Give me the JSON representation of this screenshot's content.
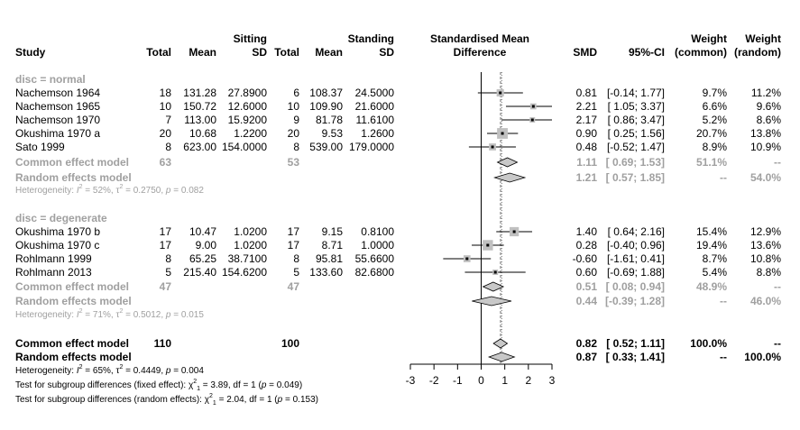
{
  "header": {
    "study": "Study",
    "exp_group": "Sitting",
    "ctl_group": "Standing",
    "total": "Total",
    "mean": "Mean",
    "sd": "SD",
    "smd_title_1": "Standardised Mean",
    "smd_title_2": "Difference",
    "smd": "SMD",
    "ci": "95%-CI",
    "weight": "Weight",
    "w_common": "(common)",
    "w_random": "(random)"
  },
  "chart_data": {
    "type": "forest",
    "xlim": [
      -3,
      3
    ],
    "xticks": [
      -3,
      -2,
      -1,
      0,
      1,
      2,
      3
    ],
    "fixed_line": 0.82,
    "random_line": 0.87,
    "subgroups": [
      {
        "label": "disc = normal",
        "studies": [
          {
            "name": "Nachemson 1964",
            "n1": "18",
            "m1": "131.28",
            "sd1": "27.8900",
            "n2": "6",
            "m2": "108.37",
            "sd2": "24.5000",
            "smd": 0.81,
            "lo": -0.14,
            "hi": 1.77,
            "smd_txt": "0.81",
            "ci_txt": "[-0.14; 1.77]",
            "wc": "9.7%",
            "wr": "11.2%",
            "w": 9.7
          },
          {
            "name": "Nachemson 1965",
            "n1": "10",
            "m1": "150.72",
            "sd1": "12.6000",
            "n2": "10",
            "m2": "109.90",
            "sd2": "21.6000",
            "smd": 2.21,
            "lo": 1.05,
            "hi": 3.37,
            "smd_txt": "2.21",
            "ci_txt": "[ 1.05; 3.37]",
            "wc": "6.6%",
            "wr": "9.6%",
            "w": 6.6
          },
          {
            "name": "Nachemson 1970",
            "n1": "7",
            "m1": "113.00",
            "sd1": "15.9200",
            "n2": "9",
            "m2": "81.78",
            "sd2": "11.6100",
            "smd": 2.17,
            "lo": 0.86,
            "hi": 3.47,
            "smd_txt": "2.17",
            "ci_txt": "[ 0.86; 3.47]",
            "wc": "5.2%",
            "wr": "8.6%",
            "w": 5.2
          },
          {
            "name": "Okushima 1970 a",
            "n1": "20",
            "m1": "10.68",
            "sd1": "1.2200",
            "n2": "20",
            "m2": "9.53",
            "sd2": "1.2600",
            "smd": 0.9,
            "lo": 0.25,
            "hi": 1.56,
            "smd_txt": "0.90",
            "ci_txt": "[ 0.25; 1.56]",
            "wc": "20.7%",
            "wr": "13.8%",
            "w": 20.7
          },
          {
            "name": "Sato 1999",
            "n1": "8",
            "m1": "623.00",
            "sd1": "154.0000",
            "n2": "8",
            "m2": "539.00",
            "sd2": "179.0000",
            "smd": 0.48,
            "lo": -0.52,
            "hi": 1.47,
            "smd_txt": "0.48",
            "ci_txt": "[-0.52; 1.47]",
            "wc": "8.9%",
            "wr": "10.9%",
            "w": 8.9
          }
        ],
        "common": {
          "label": "Common effect model",
          "n1": "63",
          "n2": "53",
          "est": 1.11,
          "lo": 0.69,
          "hi": 1.53,
          "smd_txt": "1.11",
          "ci_txt": "[ 0.69; 1.53]",
          "wc": "51.1%",
          "wr": "--"
        },
        "random": {
          "label": "Random effects model",
          "est": 1.21,
          "lo": 0.57,
          "hi": 1.85,
          "smd_txt": "1.21",
          "ci_txt": "[ 0.57; 1.85]",
          "wc": "--",
          "wr": "54.0%"
        },
        "het": {
          "pre": "Heterogeneity: ",
          "i2": "I",
          "mid": " = 52%, ",
          "tau": "τ",
          "post": " = 0.2750, ",
          "p": "p",
          "pval": " = 0.082"
        }
      },
      {
        "label": "disc = degenerate",
        "studies": [
          {
            "name": "Okushima 1970 b",
            "n1": "17",
            "m1": "10.47",
            "sd1": "1.0200",
            "n2": "17",
            "m2": "9.15",
            "sd2": "0.8100",
            "smd": 1.4,
            "lo": 0.64,
            "hi": 2.16,
            "smd_txt": "1.40",
            "ci_txt": "[ 0.64; 2.16]",
            "wc": "15.4%",
            "wr": "12.9%",
            "w": 15.4
          },
          {
            "name": "Okushima 1970 c",
            "n1": "17",
            "m1": "9.00",
            "sd1": "1.0200",
            "n2": "17",
            "m2": "8.71",
            "sd2": "1.0000",
            "smd": 0.28,
            "lo": -0.4,
            "hi": 0.96,
            "smd_txt": "0.28",
            "ci_txt": "[-0.40; 0.96]",
            "wc": "19.4%",
            "wr": "13.6%",
            "w": 19.4
          },
          {
            "name": "Rohlmann 1999",
            "n1": "8",
            "m1": "65.25",
            "sd1": "38.7100",
            "n2": "8",
            "m2": "95.81",
            "sd2": "55.6600",
            "smd": -0.6,
            "lo": -1.61,
            "hi": 0.41,
            "smd_txt": "-0.60",
            "ci_txt": "[-1.61; 0.41]",
            "wc": "8.7%",
            "wr": "10.8%",
            "w": 8.7
          },
          {
            "name": "Rohlmann 2013",
            "n1": "5",
            "m1": "215.40",
            "sd1": "154.6200",
            "n2": "5",
            "m2": "133.60",
            "sd2": "82.6800",
            "smd": 0.6,
            "lo": -0.69,
            "hi": 1.88,
            "smd_txt": "0.60",
            "ci_txt": "[-0.69; 1.88]",
            "wc": "5.4%",
            "wr": "8.8%",
            "w": 5.4
          }
        ],
        "common": {
          "label": "Common effect model",
          "n1": "47",
          "n2": "47",
          "est": 0.51,
          "lo": 0.08,
          "hi": 0.94,
          "smd_txt": "0.51",
          "ci_txt": "[ 0.08; 0.94]",
          "wc": "48.9%",
          "wr": "--"
        },
        "random": {
          "label": "Random effects model",
          "est": 0.44,
          "lo": -0.39,
          "hi": 1.28,
          "smd_txt": "0.44",
          "ci_txt": "[-0.39; 1.28]",
          "wc": "--",
          "wr": "46.0%"
        },
        "het": {
          "pre": "Heterogeneity: ",
          "i2": "I",
          "mid": " = 71%, ",
          "tau": "τ",
          "post": " = 0.5012, ",
          "p": "p",
          "pval": " = 0.015"
        }
      }
    ],
    "overall": {
      "common": {
        "label": "Common effect model",
        "n1": "110",
        "n2": "100",
        "est": 0.82,
        "lo": 0.52,
        "hi": 1.11,
        "smd_txt": "0.82",
        "ci_txt": "[ 0.52; 1.11]",
        "wc": "100.0%",
        "wr": "--"
      },
      "random": {
        "label": "Random effects model",
        "est": 0.87,
        "lo": 0.33,
        "hi": 1.41,
        "smd_txt": "0.87",
        "ci_txt": "[ 0.33; 1.41]",
        "wc": "--",
        "wr": "100.0%"
      },
      "het": {
        "pre": "Heterogeneity: ",
        "i2": "I",
        "mid": " = 65%, ",
        "tau": "τ",
        "post": " = 0.4449, ",
        "p": "p",
        "pval": " = 0.004"
      },
      "test_fixed": {
        "pre": "Test for subgroup differences (fixed effect): ",
        "chi": "χ",
        "sub": "1",
        "post": " = 3.89, df = 1 (",
        "p": "p",
        "pval": " = 0.049)"
      },
      "test_random": {
        "pre": "Test for subgroup differences (random effects): ",
        "chi": "χ",
        "sub": "1",
        "post": " = 2.04, df = 1 (",
        "p": "p",
        "pval": " = 0.153)"
      }
    }
  },
  "colors": {
    "text": "#000000",
    "grey_text": "#a0a0a0",
    "square": "#c0c0c0",
    "diamond": "#c8c8c8",
    "ref_line": "#707070"
  }
}
